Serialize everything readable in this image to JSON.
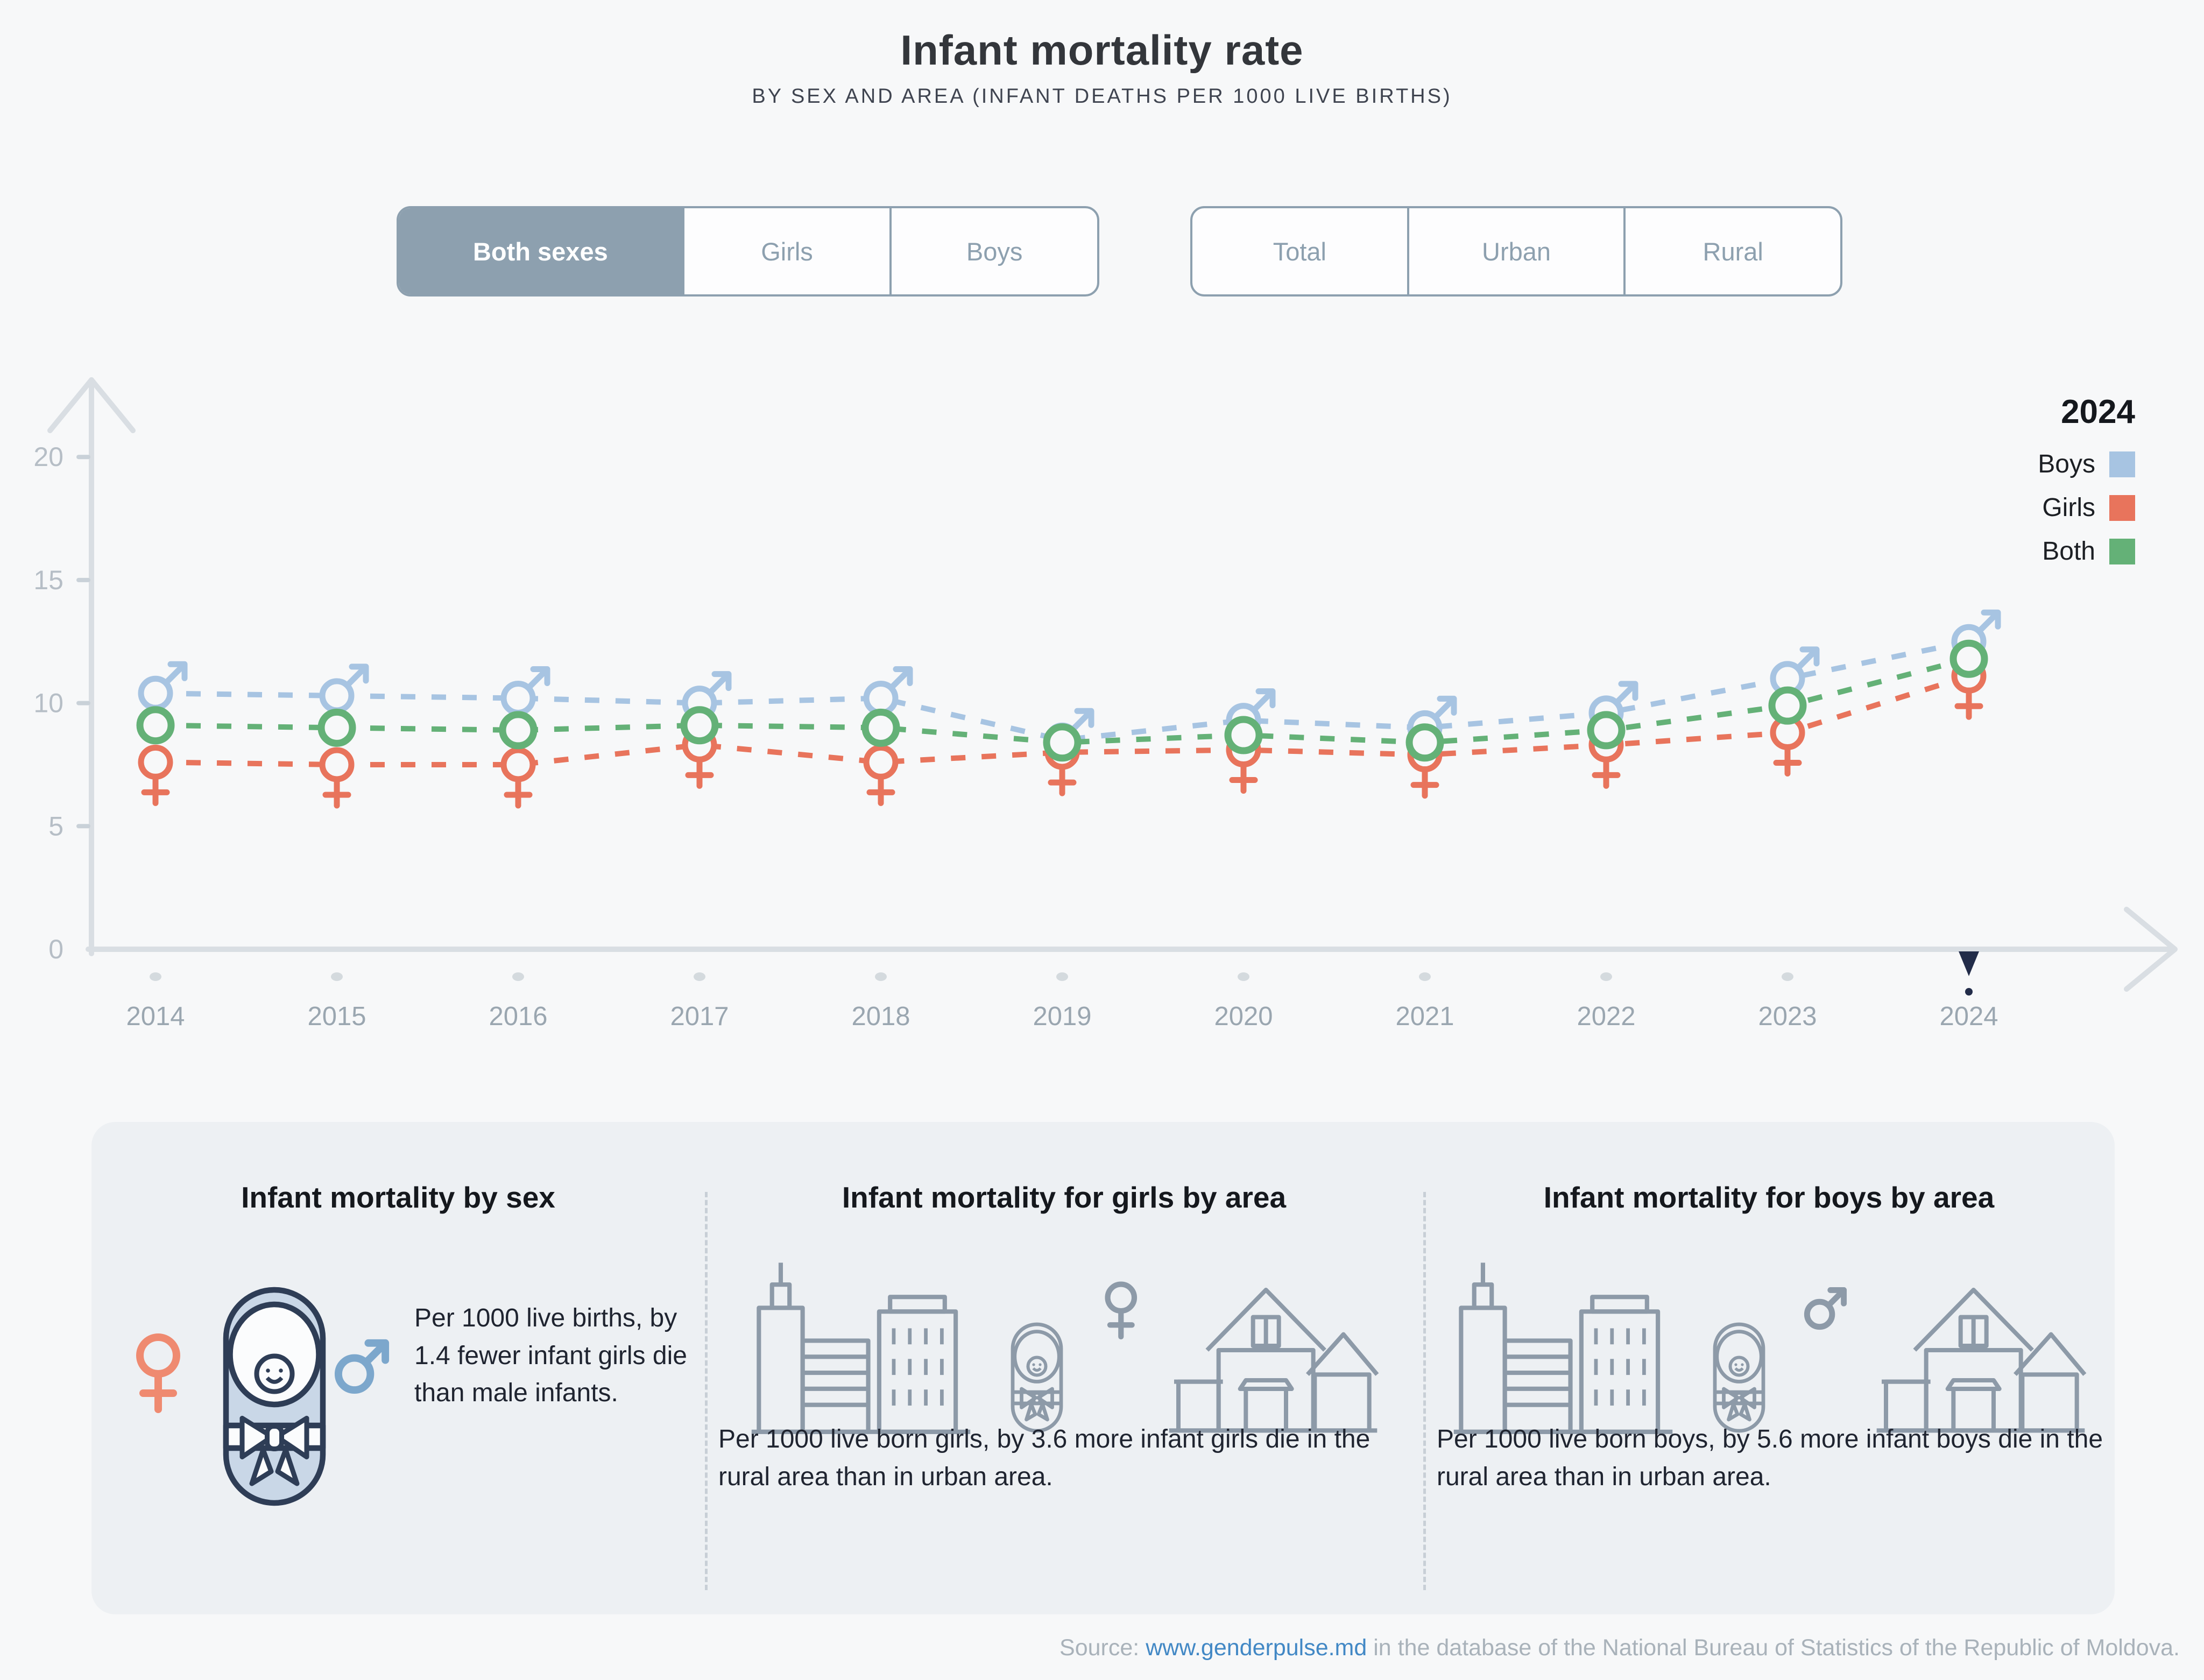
{
  "header": {
    "title": "Infant mortality rate",
    "subtitle": "BY SEX AND AREA (INFANT DEATHS PER 1000 LIVE BIRTHS)"
  },
  "controls": {
    "sex_group": {
      "options": [
        "Both sexes",
        "Girls",
        "Boys"
      ],
      "selected": "Both sexes"
    },
    "area_group": {
      "options": [
        "Total",
        "Urban",
        "Rural"
      ],
      "selected": ""
    }
  },
  "legend": {
    "year": "2024",
    "entries": [
      {
        "label": "Boys",
        "color": "#a7c4e2"
      },
      {
        "label": "Girls",
        "color": "#e8745c"
      },
      {
        "label": "Both",
        "color": "#64b177"
      }
    ]
  },
  "chart_data": {
    "type": "line",
    "x": [
      2014,
      2015,
      2016,
      2017,
      2018,
      2019,
      2020,
      2021,
      2022,
      2023,
      2024
    ],
    "series": [
      {
        "name": "Boys",
        "color": "#a7c4e2",
        "marker": "male",
        "values": [
          10.4,
          10.3,
          10.2,
          10.0,
          10.2,
          8.5,
          9.3,
          9.0,
          9.6,
          11.0,
          12.5
        ]
      },
      {
        "name": "Girls",
        "color": "#e8745c",
        "marker": "female",
        "values": [
          7.6,
          7.5,
          7.5,
          8.3,
          7.6,
          8.0,
          8.1,
          7.9,
          8.3,
          8.8,
          11.1
        ]
      },
      {
        "name": "Both",
        "color": "#64b177",
        "marker": "circle",
        "values": [
          9.1,
          9.0,
          8.9,
          9.1,
          9.0,
          8.4,
          8.7,
          8.4,
          8.9,
          9.9,
          11.8
        ]
      }
    ],
    "title": "Infant mortality rate",
    "xlabel": "",
    "ylabel": "Infant deaths per 1000 live births",
    "yticks": [
      0,
      5,
      10,
      15,
      20
    ],
    "ylim": [
      0,
      22
    ],
    "grid": false,
    "legend_position": "top-right",
    "line_style": "dashed",
    "highlight_year": 2024
  },
  "cards": [
    {
      "title": "Infant mortality by sex",
      "text": "Per 1000 live births, by 1.4 fewer infant girls die than male infants."
    },
    {
      "title": "Infant mortality for girls by area",
      "text": "Per 1000 live born girls, by 3.6 more infant girls die in the rural area than in urban area."
    },
    {
      "title": "Infant mortality for boys by area",
      "text": "Per 1000 live born boys, by 5.6 more infant boys die in the rural area than in urban area."
    }
  ],
  "source": {
    "prefix": "Source: ",
    "link": "www.genderpulse.md",
    "suffix": " in the database of the National Bureau of Statistics of the Republic of Moldova."
  },
  "theme": {
    "background": "#f7f8f9",
    "panel": "#edf0f3",
    "button_accent": "#8da0af",
    "axis": "#d9dee3",
    "tick_text": "#b6bec6",
    "year_text": "#9aa6b0",
    "cursor_navy": "#222c49",
    "icon_outline_gray": "#8d9aa8",
    "baby_fill_blue": "#c9d7e7",
    "baby_outline_navy": "#2e3d56",
    "female_orange": "#ef8a70",
    "male_blue": "#7ca7cc"
  }
}
